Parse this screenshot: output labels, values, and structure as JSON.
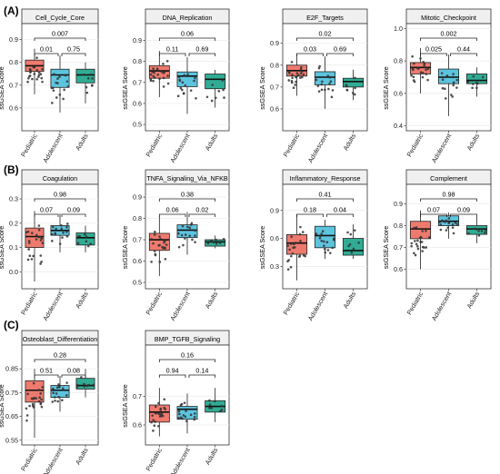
{
  "figure": {
    "palette": {
      "Pediatric": "#ee7a6e",
      "Adolescent": "#5dc4de",
      "Adults": "#31ac94",
      "panel_bg": "#ebebeb",
      "strip_bg": "#f0f0f0",
      "point": "#333333"
    },
    "groups": [
      "Pediatric",
      "Adolescent",
      "Adults"
    ],
    "ylabel": "ssGSEA Score",
    "sections": [
      {
        "label": "(A)",
        "panels": [
          "Cell_Cycle_Core",
          "DNA_Replication",
          "E2F_Targets",
          "Mitotic_Checkpoint"
        ]
      },
      {
        "label": "(B)",
        "panels": [
          "Coagulation",
          "TNFA_Signaling_Via_NFKB",
          "Inflammatory_Response",
          "Complement"
        ]
      },
      {
        "label": "(C)",
        "panels": [
          "Osteoblast_Differentiation",
          "BMP_TGFB_Signaling"
        ]
      }
    ]
  },
  "chart_data": [
    {
      "type": "box",
      "title": "Cell_Cycle_Core",
      "ylabel": "ssGSEA Score",
      "ylim": [
        0.5,
        0.97
      ],
      "yticks": [
        0.6,
        0.7,
        0.8,
        0.9
      ],
      "ytick_labels": [
        "0.6",
        "0.7",
        "0.8",
        "0.9"
      ],
      "categories": [
        "Pediatric",
        "Adolescent",
        "Adults"
      ],
      "boxes": [
        {
          "group": "Pediatric",
          "min": 0.66,
          "q1": 0.76,
          "median": 0.785,
          "q3": 0.81,
          "max": 0.86
        },
        {
          "group": "Adolescent",
          "min": 0.58,
          "q1": 0.69,
          "median": 0.745,
          "q3": 0.77,
          "max": 0.83
        },
        {
          "group": "Adults",
          "min": 0.62,
          "q1": 0.71,
          "median": 0.745,
          "q3": 0.77,
          "max": 0.8
        }
      ],
      "p_values": [
        {
          "label": "0.01",
          "from": 0,
          "to": 1
        },
        {
          "label": "0.75",
          "from": 1,
          "to": 2
        },
        {
          "label": "0.007",
          "from": 0,
          "to": 2
        }
      ]
    },
    {
      "type": "box",
      "title": "DNA_Replication",
      "ylabel": "ssGSEA Score",
      "ylim": [
        0.47,
        0.98
      ],
      "yticks": [
        0.5,
        0.6,
        0.7,
        0.8,
        0.9
      ],
      "ytick_labels": [
        "0.5",
        "0.6",
        "0.7",
        "0.8",
        "0.9"
      ],
      "categories": [
        "Pediatric",
        "Adolescent",
        "Adults"
      ],
      "boxes": [
        {
          "group": "Pediatric",
          "min": 0.63,
          "q1": 0.72,
          "median": 0.755,
          "q3": 0.78,
          "max": 0.85
        },
        {
          "group": "Adolescent",
          "min": 0.55,
          "q1": 0.68,
          "median": 0.73,
          "q3": 0.75,
          "max": 0.82
        },
        {
          "group": "Adults",
          "min": 0.58,
          "q1": 0.67,
          "median": 0.715,
          "q3": 0.74,
          "max": 0.76
        }
      ],
      "p_values": [
        {
          "label": "0.11",
          "from": 0,
          "to": 1
        },
        {
          "label": "0.69",
          "from": 1,
          "to": 2
        },
        {
          "label": "0.06",
          "from": 0,
          "to": 2
        }
      ]
    },
    {
      "type": "box",
      "title": "E2F_Targets",
      "ylabel": "ssGSEA Score",
      "ylim": [
        0.5,
        0.99
      ],
      "yticks": [
        0.6,
        0.7,
        0.8,
        0.9
      ],
      "ytick_labels": [
        "0.6",
        "0.7",
        "0.8",
        "0.9"
      ],
      "categories": [
        "Pediatric",
        "Adolescent",
        "Adults"
      ],
      "boxes": [
        {
          "group": "Pediatric",
          "min": 0.66,
          "q1": 0.75,
          "median": 0.775,
          "q3": 0.8,
          "max": 0.85
        },
        {
          "group": "Adolescent",
          "min": 0.6,
          "q1": 0.71,
          "median": 0.745,
          "q3": 0.77,
          "max": 0.84
        },
        {
          "group": "Adults",
          "min": 0.64,
          "q1": 0.7,
          "median": 0.725,
          "q3": 0.74,
          "max": 0.78
        }
      ],
      "p_values": [
        {
          "label": "0.03",
          "from": 0,
          "to": 1
        },
        {
          "label": "0.69",
          "from": 1,
          "to": 2
        },
        {
          "label": "0.02",
          "from": 0,
          "to": 2
        }
      ]
    },
    {
      "type": "box",
      "title": "Mitotic_Checkpoint",
      "ylabel": "ssGSEA Score",
      "ylim": [
        0.37,
        1.03
      ],
      "yticks": [
        0.4,
        0.6,
        0.8,
        1.0
      ],
      "ytick_labels": [
        "0.4",
        "0.6",
        "0.8",
        "1.0"
      ],
      "categories": [
        "Pediatric",
        "Adolescent",
        "Adults"
      ],
      "boxes": [
        {
          "group": "Pediatric",
          "min": 0.6,
          "q1": 0.72,
          "median": 0.76,
          "q3": 0.79,
          "max": 0.88
        },
        {
          "group": "Adolescent",
          "min": 0.46,
          "q1": 0.66,
          "median": 0.7,
          "q3": 0.75,
          "max": 0.84
        },
        {
          "group": "Adults",
          "min": 0.58,
          "q1": 0.66,
          "median": 0.68,
          "q3": 0.72,
          "max": 0.76
        }
      ],
      "p_values": [
        {
          "label": "0.025",
          "from": 0,
          "to": 1
        },
        {
          "label": "0.44",
          "from": 1,
          "to": 2
        },
        {
          "label": "0.002",
          "from": 0,
          "to": 2
        }
      ]
    },
    {
      "type": "box",
      "title": "Coagulation",
      "ylabel": "ssGSEA Score",
      "ylim": [
        -0.07,
        0.36
      ],
      "yticks": [
        0.0,
        0.1,
        0.2,
        0.3
      ],
      "ytick_labels": [
        "0.0",
        "0.1",
        "0.2",
        "0.3"
      ],
      "categories": [
        "Pediatric",
        "Adolescent",
        "Adults"
      ],
      "boxes": [
        {
          "group": "Pediatric",
          "min": -0.04,
          "q1": 0.1,
          "median": 0.145,
          "q3": 0.18,
          "max": 0.25
        },
        {
          "group": "Adolescent",
          "min": 0.08,
          "q1": 0.15,
          "median": 0.17,
          "q3": 0.19,
          "max": 0.24
        },
        {
          "group": "Adults",
          "min": 0.08,
          "q1": 0.11,
          "median": 0.14,
          "q3": 0.16,
          "max": 0.19
        }
      ],
      "p_values": [
        {
          "label": "0.07",
          "from": 0,
          "to": 1
        },
        {
          "label": "0.09",
          "from": 1,
          "to": 2
        },
        {
          "label": "0.98",
          "from": 0,
          "to": 2
        }
      ]
    },
    {
      "type": "box",
      "title": "TNFA_Signaling_Via_NFKB",
      "ylabel": "ssGSEA Score",
      "ylim": [
        0.47,
        0.96
      ],
      "yticks": [
        0.5,
        0.6,
        0.7,
        0.8,
        0.9
      ],
      "ytick_labels": [
        "0.5",
        "0.6",
        "0.7",
        "0.8",
        "0.9"
      ],
      "categories": [
        "Pediatric",
        "Adolescent",
        "Adults"
      ],
      "boxes": [
        {
          "group": "Pediatric",
          "min": 0.53,
          "q1": 0.65,
          "median": 0.7,
          "q3": 0.73,
          "max": 0.81
        },
        {
          "group": "Adolescent",
          "min": 0.63,
          "q1": 0.71,
          "median": 0.745,
          "q3": 0.77,
          "max": 0.83
        },
        {
          "group": "Adults",
          "min": 0.66,
          "q1": 0.67,
          "median": 0.69,
          "q3": 0.7,
          "max": 0.72
        }
      ],
      "p_values": [
        {
          "label": "0.06",
          "from": 0,
          "to": 1
        },
        {
          "label": "0.02",
          "from": 1,
          "to": 2
        },
        {
          "label": "0.38",
          "from": 0,
          "to": 2
        }
      ]
    },
    {
      "type": "box",
      "title": "Inflammatory_Response",
      "ylabel": "ssGSEA Score",
      "ylim": [
        0.06,
        1.18
      ],
      "yticks": [
        0.3,
        0.6,
        0.9
      ],
      "ytick_labels": [
        "0.3",
        "0.6",
        "0.9"
      ],
      "categories": [
        "Pediatric",
        "Adolescent",
        "Adults"
      ],
      "boxes": [
        {
          "group": "Pediatric",
          "min": 0.15,
          "q1": 0.43,
          "median": 0.55,
          "q3": 0.64,
          "max": 0.86
        },
        {
          "group": "Adolescent",
          "min": 0.38,
          "q1": 0.5,
          "median": 0.63,
          "q3": 0.73,
          "max": 0.8
        },
        {
          "group": "Adults",
          "min": 0.38,
          "q1": 0.42,
          "median": 0.47,
          "q3": 0.6,
          "max": 0.75
        }
      ],
      "p_values": [
        {
          "label": "0.18",
          "from": 0,
          "to": 1
        },
        {
          "label": "0.04",
          "from": 1,
          "to": 2
        },
        {
          "label": "0.41",
          "from": 0,
          "to": 2
        }
      ]
    },
    {
      "type": "box",
      "title": "Complement",
      "ylabel": "ssGSEA Score",
      "ylim": [
        0.51,
        0.99
      ],
      "yticks": [
        0.6,
        0.7,
        0.8,
        0.9
      ],
      "ytick_labels": [
        "0.6",
        "0.7",
        "0.8",
        "0.9"
      ],
      "categories": [
        "Pediatric",
        "Adolescent",
        "Adults"
      ],
      "boxes": [
        {
          "group": "Pediatric",
          "min": 0.6,
          "q1": 0.74,
          "median": 0.785,
          "q3": 0.82,
          "max": 0.87
        },
        {
          "group": "Adolescent",
          "min": 0.74,
          "q1": 0.8,
          "median": 0.82,
          "q3": 0.845,
          "max": 0.86
        },
        {
          "group": "Adults",
          "min": 0.72,
          "q1": 0.76,
          "median": 0.785,
          "q3": 0.8,
          "max": 0.84
        }
      ],
      "p_values": [
        {
          "label": "0.07",
          "from": 0,
          "to": 1
        },
        {
          "label": "0.09",
          "from": 1,
          "to": 2
        },
        {
          "label": "0.98",
          "from": 0,
          "to": 2
        }
      ]
    },
    {
      "type": "box",
      "title": "Osteoblast_Differentiation",
      "ylabel": "ssGSEA Score",
      "ylim": [
        0.53,
        0.95
      ],
      "yticks": [
        0.55,
        0.65,
        0.75,
        0.85
      ],
      "ytick_labels": [
        "0.55",
        "0.65",
        "0.75",
        "0.85"
      ],
      "categories": [
        "Pediatric",
        "Adolescent",
        "Adults"
      ],
      "boxes": [
        {
          "group": "Pediatric",
          "min": 0.56,
          "q1": 0.71,
          "median": 0.76,
          "q3": 0.8,
          "max": 0.85
        },
        {
          "group": "Adolescent",
          "min": 0.67,
          "q1": 0.73,
          "median": 0.76,
          "q3": 0.78,
          "max": 0.82
        },
        {
          "group": "Adults",
          "min": 0.73,
          "q1": 0.765,
          "median": 0.78,
          "q3": 0.81,
          "max": 0.85
        }
      ],
      "p_values": [
        {
          "label": "0.51",
          "from": 0,
          "to": 1
        },
        {
          "label": "0.08",
          "from": 1,
          "to": 2
        },
        {
          "label": "0.28",
          "from": 0,
          "to": 2
        }
      ]
    },
    {
      "type": "box",
      "title": "BMP_TGFB_Signaling",
      "ylabel": "ssGSEA Score",
      "ylim": [
        0.53,
        0.88
      ],
      "yticks": [
        0.6,
        0.7
      ],
      "ytick_labels": [
        "0.6",
        "0.7"
      ],
      "categories": [
        "Pediatric",
        "Adolescent",
        "Adults"
      ],
      "boxes": [
        {
          "group": "Pediatric",
          "min": 0.56,
          "q1": 0.61,
          "median": 0.645,
          "q3": 0.67,
          "max": 0.73
        },
        {
          "group": "Adolescent",
          "min": 0.57,
          "q1": 0.62,
          "median": 0.655,
          "q3": 0.665,
          "max": 0.71
        },
        {
          "group": "Adults",
          "min": 0.61,
          "q1": 0.645,
          "median": 0.665,
          "q3": 0.685,
          "max": 0.73
        }
      ],
      "p_values": [
        {
          "label": "0.94",
          "from": 0,
          "to": 1
        },
        {
          "label": "0.14",
          "from": 1,
          "to": 2
        },
        {
          "label": "0.16",
          "from": 0,
          "to": 2
        }
      ]
    }
  ]
}
